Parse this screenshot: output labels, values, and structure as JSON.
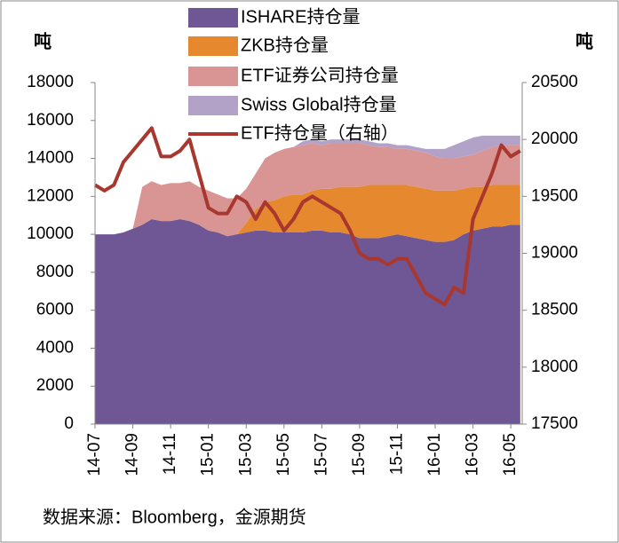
{
  "chart_data": {
    "type": "stacked_area_line",
    "y_label": "吨",
    "y2_label": "吨",
    "source": "数据来源：Bloomberg，金源期货",
    "categories": [
      "14-07",
      null,
      null,
      null,
      "14-09",
      null,
      null,
      null,
      "14-11",
      null,
      null,
      null,
      "15-01",
      null,
      null,
      null,
      "15-03",
      null,
      null,
      null,
      "15-05",
      null,
      null,
      null,
      "15-07",
      null,
      null,
      null,
      "15-09",
      null,
      null,
      null,
      "15-11",
      null,
      null,
      null,
      "16-01",
      null,
      null,
      null,
      "16-03",
      null,
      null,
      null,
      "16-05",
      null
    ],
    "ylim": [
      0,
      18000
    ],
    "yticks": [
      0,
      2000,
      4000,
      6000,
      8000,
      10000,
      12000,
      14000,
      16000,
      18000
    ],
    "y2lim": [
      17500,
      20500
    ],
    "y2ticks": [
      17500,
      18000,
      18500,
      19000,
      19500,
      20000,
      20500
    ],
    "series": [
      {
        "name": "ISHARE持仓量",
        "color": "#6f5694",
        "kind": "area",
        "values": [
          10000,
          10000,
          10000,
          10100,
          10300,
          10500,
          10800,
          10700,
          10700,
          10800,
          10700,
          10500,
          10200,
          10100,
          9900,
          10000,
          10100,
          10200,
          10200,
          10100,
          10100,
          10100,
          10100,
          10200,
          10200,
          10100,
          10100,
          10000,
          9800,
          9800,
          9800,
          9900,
          10000,
          9900,
          9800,
          9700,
          9600,
          9600,
          9700,
          10000,
          10200,
          10300,
          10400,
          10400,
          10500,
          10500
        ]
      },
      {
        "name": "ZKB持仓量",
        "color": "#e6892e",
        "kind": "area",
        "values": [
          0,
          0,
          0,
          0,
          0,
          0,
          0,
          0,
          0,
          0,
          0,
          0,
          0,
          0,
          0,
          0,
          500,
          1100,
          1500,
          1700,
          1900,
          2000,
          2000,
          2100,
          2200,
          2300,
          2400,
          2500,
          2700,
          2800,
          2800,
          2700,
          2600,
          2700,
          2700,
          2700,
          2700,
          2700,
          2600,
          2400,
          2300,
          2200,
          2200,
          2200,
          2100,
          2100
        ]
      },
      {
        "name": "ETF证券公司持仓量",
        "color": "#d99594",
        "kind": "area",
        "values": [
          0,
          0,
          0,
          0,
          0,
          2000,
          2000,
          1900,
          2000,
          1900,
          2100,
          2000,
          2100,
          2000,
          2000,
          1900,
          1800,
          1900,
          2300,
          2500,
          2500,
          2500,
          2600,
          2500,
          2300,
          2400,
          2300,
          2300,
          2300,
          2100,
          2000,
          2000,
          1900,
          1900,
          1900,
          1900,
          1800,
          1700,
          1700,
          1700,
          1700,
          1900,
          2000,
          2100,
          2100,
          2100
        ]
      },
      {
        "name": "Swiss Global持仓量",
        "color": "#b3a2c7",
        "kind": "area",
        "values": [
          0,
          0,
          0,
          0,
          0,
          0,
          0,
          0,
          0,
          0,
          0,
          0,
          0,
          0,
          0,
          0,
          0,
          0,
          0,
          0,
          0,
          0,
          200,
          200,
          200,
          200,
          200,
          200,
          200,
          200,
          200,
          200,
          200,
          200,
          200,
          200,
          400,
          500,
          700,
          800,
          900,
          800,
          600,
          500,
          500,
          500
        ]
      },
      {
        "name": "ETF持仓量（右轴）",
        "color": "#a8372f",
        "kind": "line",
        "axis": "y2",
        "values": [
          19600,
          19550,
          19600,
          19800,
          19900,
          20000,
          20100,
          19850,
          19850,
          19900,
          20000,
          19700,
          19400,
          19350,
          19350,
          19500,
          19450,
          19300,
          19450,
          19350,
          19200,
          19300,
          19450,
          19500,
          19450,
          19400,
          19350,
          19200,
          19000,
          18950,
          18950,
          18900,
          18950,
          18950,
          18800,
          18650,
          18600,
          18550,
          18700,
          18650,
          19300,
          19500,
          19700,
          19950,
          19850,
          19900
        ]
      }
    ]
  }
}
